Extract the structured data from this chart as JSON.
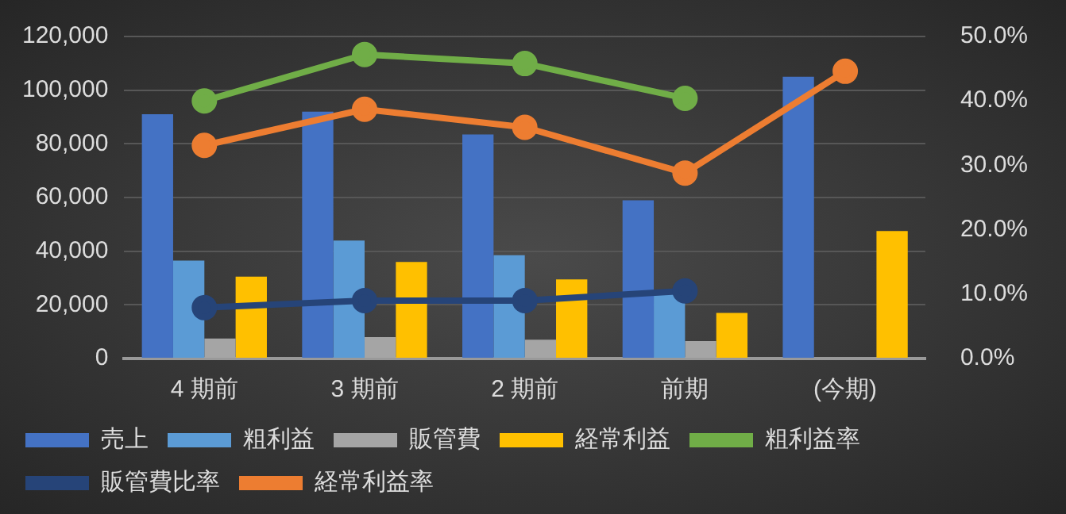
{
  "chart_data": {
    "type": "bar",
    "categories": [
      "4 期前",
      "3 期前",
      "2 期前",
      "前期",
      "(今期)"
    ],
    "series": [
      {
        "name": "売上",
        "color": "#4472c4",
        "values": [
          91000,
          92000,
          83500,
          59000,
          105000
        ]
      },
      {
        "name": "粗利益",
        "color": "#5b9bd5",
        "values": [
          36500,
          44000,
          38500,
          25000,
          null
        ]
      },
      {
        "name": "販管費",
        "color": "#a5a5a5",
        "values": [
          7500,
          8000,
          7000,
          6500,
          null
        ]
      },
      {
        "name": "経常利益",
        "color": "#ffc000",
        "values": [
          30500,
          36000,
          29500,
          17000,
          47500
        ]
      },
      {
        "name": "粗利益率",
        "type": "line",
        "axis": "y2",
        "color": "#70ad47",
        "values": [
          40,
          47.2,
          45.8,
          40.4,
          null
        ]
      },
      {
        "name": "販管費比率",
        "type": "line",
        "axis": "y2",
        "color": "#264478",
        "values": [
          7.9,
          9,
          9,
          10.5,
          null
        ]
      },
      {
        "name": "経常利益率",
        "type": "line",
        "axis": "y2",
        "color": "#ed7d31",
        "values": [
          33.1,
          38.7,
          35.9,
          28.8,
          44.6
        ]
      }
    ],
    "ylim": [
      0,
      120000
    ],
    "yticks": [
      {
        "value": 0,
        "label": "0"
      },
      {
        "value": 20000,
        "label": "20,000"
      },
      {
        "value": 40000,
        "label": "40,000"
      },
      {
        "value": 60000,
        "label": "60,000"
      },
      {
        "value": 80000,
        "label": "80,000"
      },
      {
        "value": 100000,
        "label": "100,000"
      },
      {
        "value": 120000,
        "label": "120,000"
      }
    ],
    "y2lim": [
      0,
      50
    ],
    "y2ticks": [
      {
        "value": 0,
        "label": "0.0%"
      },
      {
        "value": 10,
        "label": "10.0%"
      },
      {
        "value": 20,
        "label": "20.0%"
      },
      {
        "value": 30,
        "label": "30.0%"
      },
      {
        "value": 40,
        "label": "40.0%"
      },
      {
        "value": 50,
        "label": "50.0%"
      }
    ],
    "grid": "y",
    "legend": "bottom",
    "marker": "circle"
  }
}
